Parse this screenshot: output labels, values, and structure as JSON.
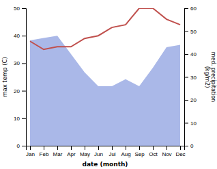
{
  "chart_data": {
    "type": "line",
    "categories": [
      "Jan",
      "Feb",
      "Mar",
      "Apr",
      "May",
      "Jun",
      "Jul",
      "Aug",
      "Sep",
      "Oct",
      "Nov",
      "Dec"
    ],
    "series": [
      {
        "type": "area",
        "axis": "y2",
        "color": "#aab8e8",
        "values": [
          46,
          47,
          48,
          40,
          32,
          26,
          26,
          29,
          26,
          34,
          43,
          44
        ]
      },
      {
        "type": "line",
        "color": "#c0504d",
        "values": [
          38,
          35,
          36,
          36,
          39,
          40,
          43,
          44,
          50,
          50,
          46,
          44
        ]
      }
    ],
    "x_label": "date (month)",
    "y_label": "max temp (C)",
    "y2_label": "med. precipitation\n(kg/m2)",
    "ylim": [
      0,
      50
    ],
    "yticks": [
      0,
      10,
      20,
      30,
      40,
      50
    ],
    "y2lim": [
      0,
      60
    ],
    "y2ticks": [
      0,
      10,
      20,
      30,
      40,
      50,
      60
    ],
    "grid": false
  }
}
